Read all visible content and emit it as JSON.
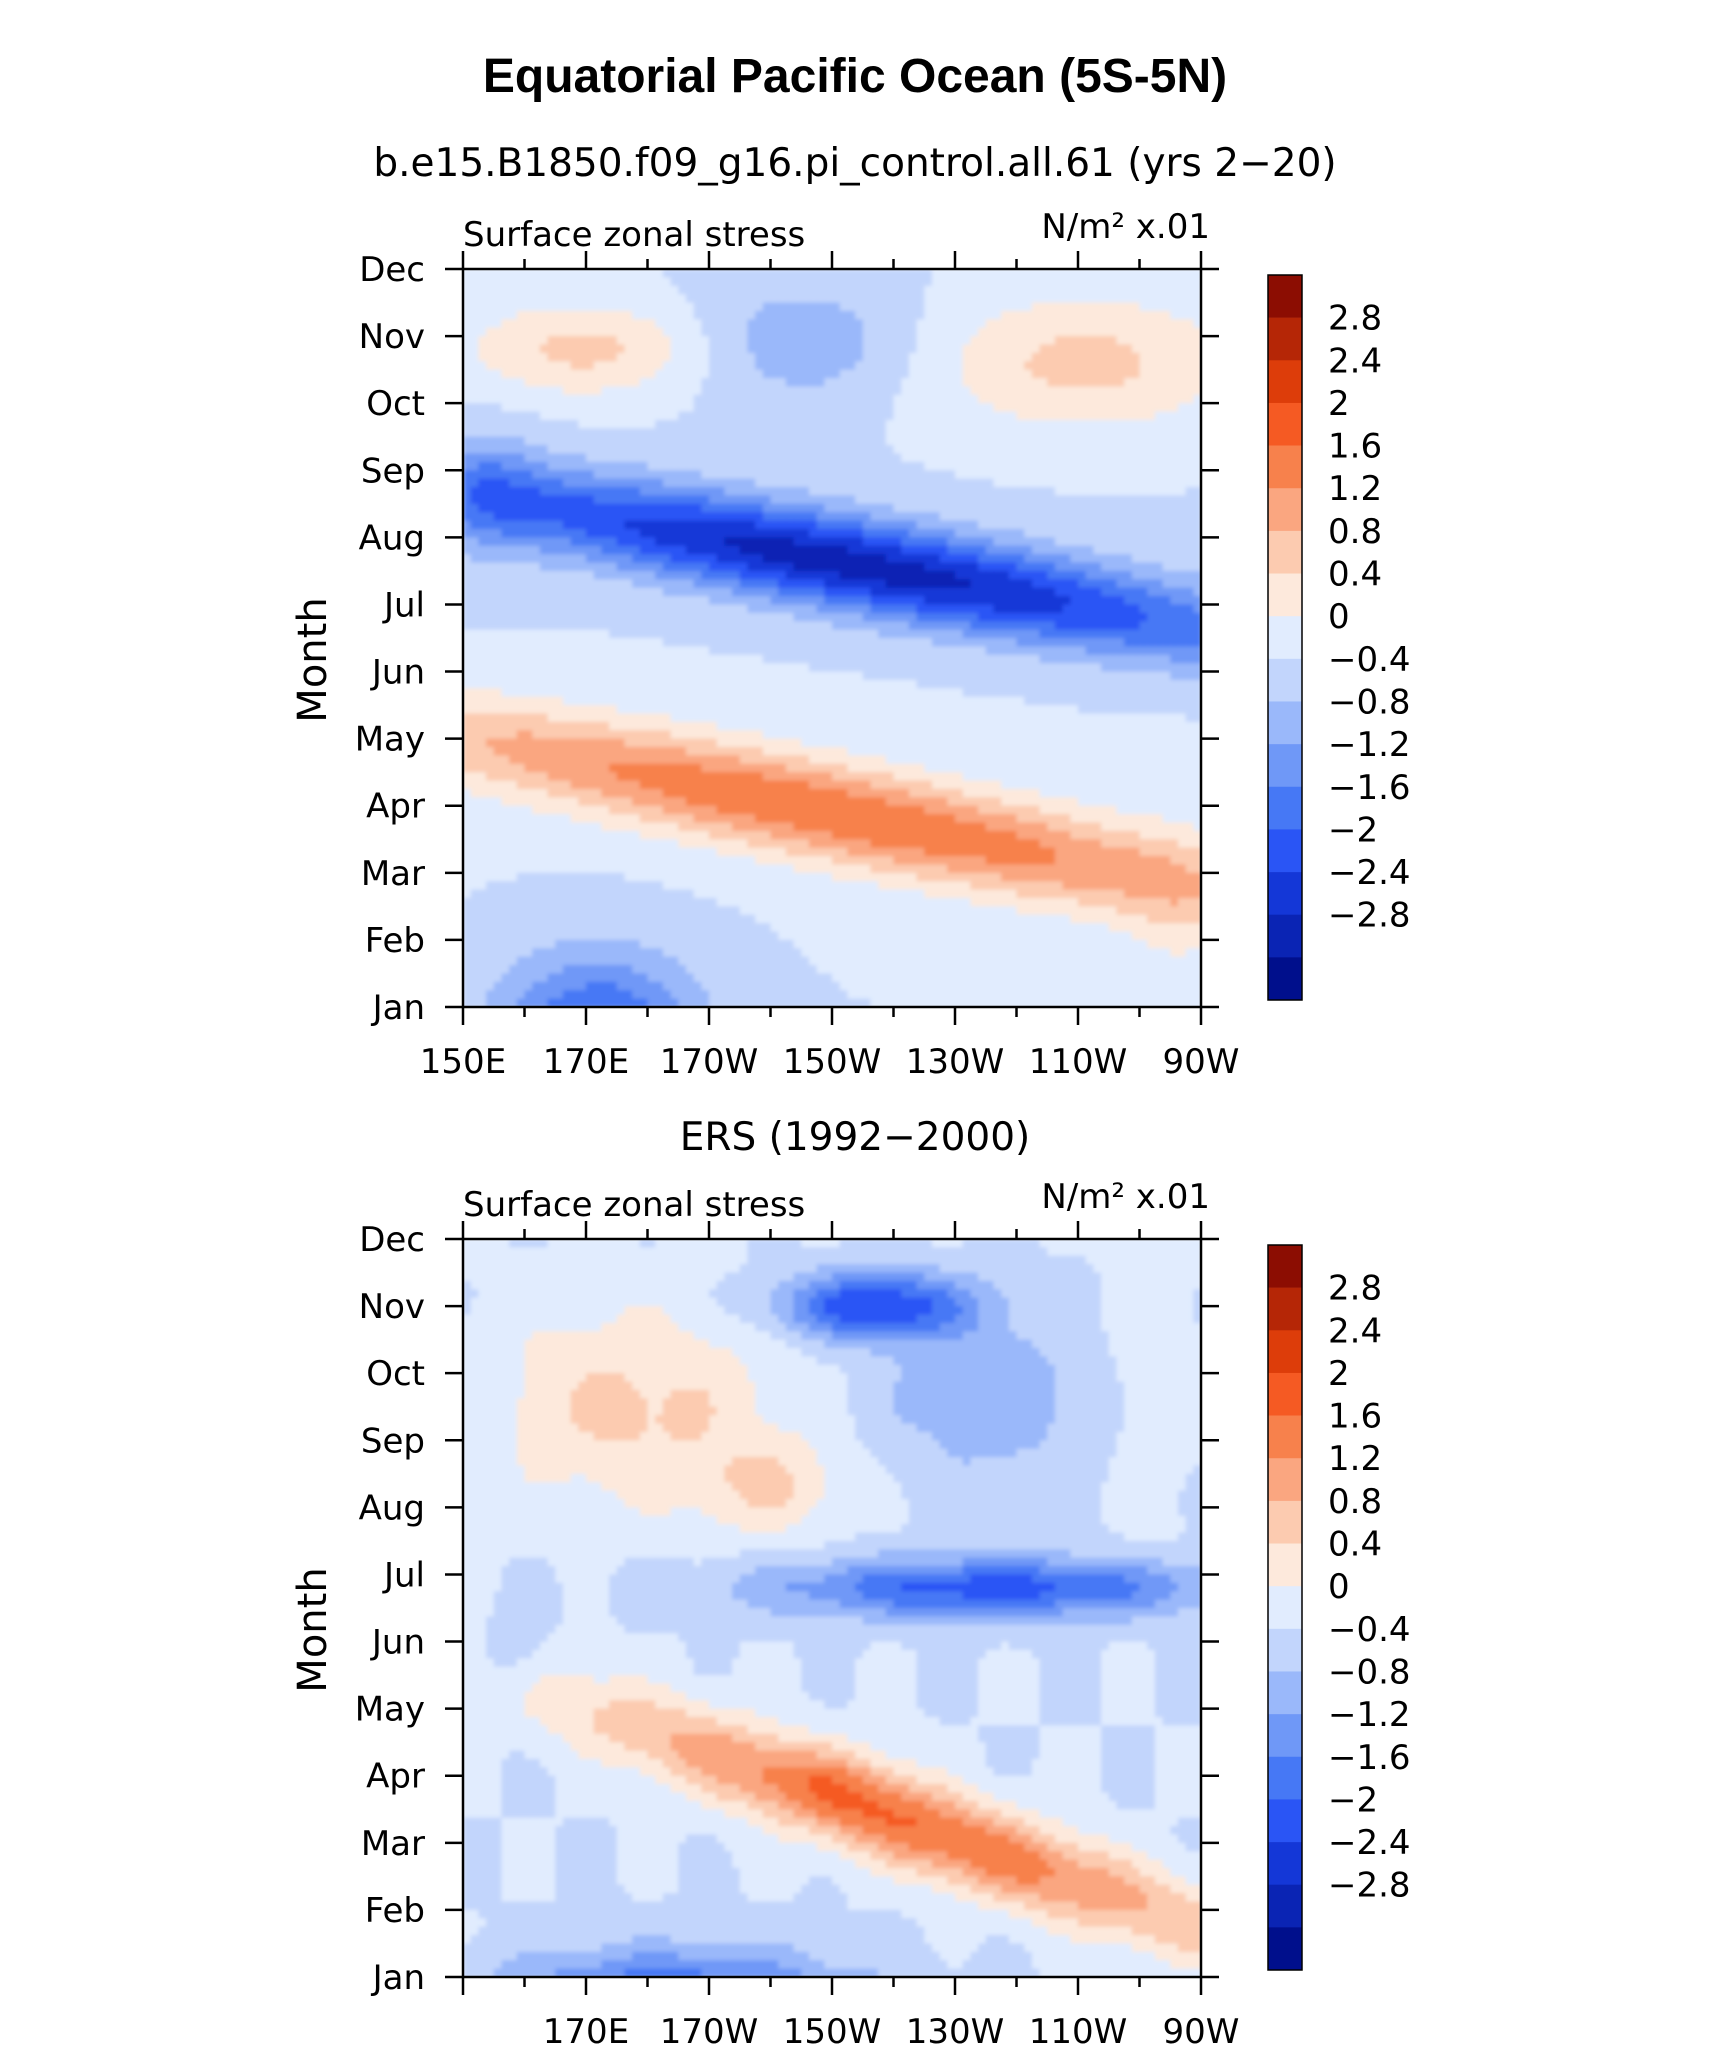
{
  "figure": {
    "title": "Equatorial Pacific Ocean (5S-5N)",
    "colorbar_colors": [
      "#000f8c",
      "#0a24b4",
      "#1437d7",
      "#2a55f5",
      "#4678f5",
      "#6f98f7",
      "#9ab8fa",
      "#c2d5fc",
      "#e1ecfe",
      "#fde9dc",
      "#fccbb0",
      "#faa680",
      "#f7814c",
      "#f55a23",
      "#dd3d0a",
      "#b52606",
      "#8c0d02"
    ],
    "colorbar_labels": [
      "2.8",
      "2.4",
      "2",
      "1.6",
      "1.2",
      "0.8",
      "0.4",
      "0",
      "−0.4",
      "−0.8",
      "−1.2",
      "−1.6",
      "−2",
      "−2.4",
      "−2.8"
    ]
  },
  "chart_data": [
    {
      "type": "heatmap",
      "subtitle": "b.e15.B1850.f09_g16.pi_control.all.61 (yrs 2−20)",
      "left_label": "Surface zonal stress",
      "right_label": "N/m² x.01",
      "ylabel": "Month",
      "y_ticks": [
        "Jan",
        "Feb",
        "Mar",
        "Apr",
        "May",
        "Jun",
        "Jul",
        "Aug",
        "Sep",
        "Oct",
        "Nov",
        "Dec"
      ],
      "x_ticks": [
        "150E",
        "170E",
        "170W",
        "150W",
        "130W",
        "110W",
        "90W"
      ],
      "xlim": [
        "150E",
        "90W"
      ],
      "contour_levels": [
        -2.8,
        -2.4,
        -2,
        -1.6,
        -1.2,
        -0.8,
        -0.4,
        0,
        0.4,
        0.8,
        1.2,
        1.6,
        2,
        2.4,
        2.8
      ],
      "features": [
        {
          "name": "spring westerly maximum",
          "lon": "160W",
          "month": "May",
          "value": 1.9
        },
        {
          "name": "warm tongue",
          "lon": "125W",
          "month": "Mar",
          "value": 1.4
        },
        {
          "name": "summer easterly minimum",
          "lon": "120W",
          "month": "Jul",
          "value": -2.5
        },
        {
          "name": "winter western minimum",
          "lon": "170E",
          "month": "Jan",
          "value": -1.7
        },
        {
          "name": "autumn western maximum",
          "lon": "170E",
          "month": "Nov",
          "value": 0.9
        },
        {
          "name": "autumn eastern maximum",
          "lon": "110W",
          "month": "Nov",
          "value": 0.9
        }
      ]
    },
    {
      "type": "heatmap",
      "subtitle": "ERS (1992−2000)",
      "left_label": "Surface zonal stress",
      "right_label": "N/m² x.01",
      "ylabel": "Month",
      "y_ticks": [
        "Jan",
        "Feb",
        "Mar",
        "Apr",
        "May",
        "Jun",
        "Jul",
        "Aug",
        "Sep",
        "Oct",
        "Nov",
        "Dec"
      ],
      "x_ticks": [
        "170E",
        "170W",
        "150W",
        "130W",
        "110W",
        "90W"
      ],
      "xlim": [
        "150E",
        "90W"
      ],
      "contour_levels": [
        -2.8,
        -2.4,
        -2,
        -1.6,
        -1.2,
        -0.8,
        -0.4,
        0,
        0.4,
        0.8,
        1.2,
        1.6,
        2,
        2.4,
        2.8
      ],
      "features": [
        {
          "name": "spring westerly maximum",
          "lon": "130W",
          "month": "Mar",
          "value": 2.0
        },
        {
          "name": "spring secondary maximum",
          "lon": "145W",
          "month": "Apr",
          "value": 1.7
        },
        {
          "name": "summer easterly band",
          "lon": "130W",
          "month": "Jul",
          "value": -1.7
        },
        {
          "name": "winter western minimum",
          "lon": "165W",
          "month": "Jan",
          "value": -1.7
        },
        {
          "name": "december minimum",
          "lon": "145W",
          "month": "Dec",
          "value": -1.8
        },
        {
          "name": "autumn western maximum",
          "lon": "175E",
          "month": "Nov",
          "value": 1.0
        }
      ]
    }
  ]
}
